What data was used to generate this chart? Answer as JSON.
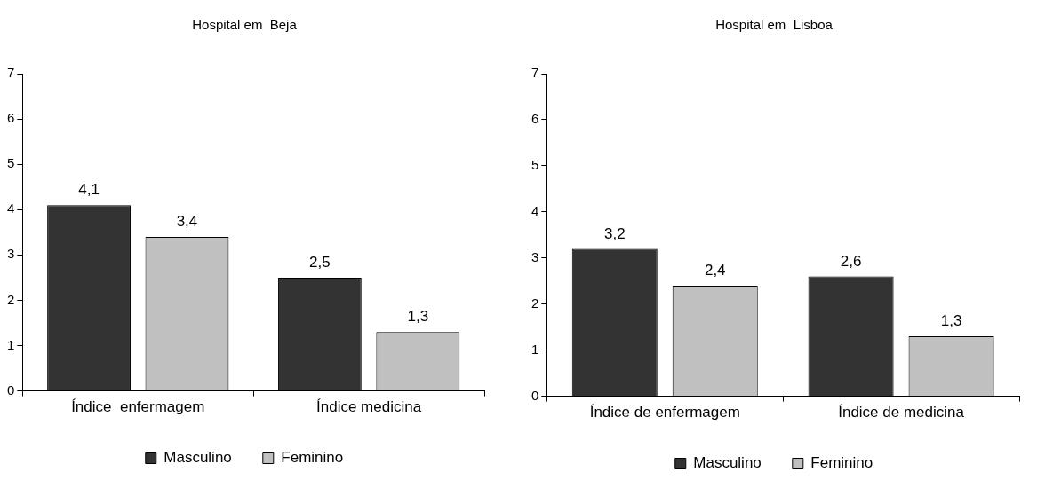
{
  "chart_data": [
    {
      "type": "bar",
      "title": "Hospital em  Beja",
      "categories": [
        "Índice  enfermagem",
        "Índice medicina"
      ],
      "series": [
        {
          "name": "Masculino",
          "color": "#333333",
          "values": [
            4.1,
            2.5
          ],
          "value_labels": [
            "4,1",
            "2,5"
          ]
        },
        {
          "name": "Feminino",
          "color": "#c0c0c0",
          "values": [
            3.4,
            1.3
          ],
          "value_labels": [
            "3,4",
            "1,3"
          ]
        }
      ],
      "ylim": [
        0,
        7
      ],
      "yticks": [
        0,
        1,
        2,
        3,
        4,
        5,
        6,
        7
      ],
      "grid": false,
      "legend": "bottom"
    },
    {
      "type": "bar",
      "title": "Hospital em  Lisboa",
      "categories": [
        "Índice de enfermagem",
        "Índice de medicina"
      ],
      "series": [
        {
          "name": "Masculino",
          "color": "#333333",
          "values": [
            3.2,
            2.6
          ],
          "value_labels": [
            "3,2",
            "2,6"
          ]
        },
        {
          "name": "Feminino",
          "color": "#c0c0c0",
          "values": [
            2.4,
            1.3
          ],
          "value_labels": [
            "2,4",
            "1,3"
          ]
        }
      ],
      "ylim": [
        0,
        7
      ],
      "yticks": [
        0,
        1,
        2,
        3,
        4,
        5,
        6,
        7
      ],
      "grid": false,
      "legend": "bottom"
    }
  ]
}
